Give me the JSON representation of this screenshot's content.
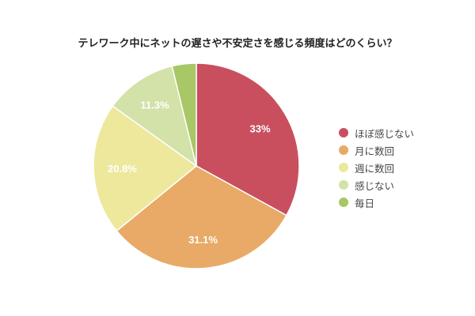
{
  "chart_data": {
    "type": "pie",
    "title": "テレワーク中にネットの遅さや不安定さを感じる頻度はどのくらい？",
    "categories": [
      "ほぼ感じない",
      "月に数回",
      "週に数回",
      "感じない",
      "毎日"
    ],
    "values": [
      33,
      31.1,
      20.8,
      11.3,
      3.8
    ],
    "labels": [
      "33%",
      "31.1%",
      "20.8%",
      "11.3%",
      ""
    ],
    "colors": [
      "#c94f5f",
      "#e8aa66",
      "#ede89c",
      "#d2e2a8",
      "#a8c766"
    ],
    "legend_position": "right"
  }
}
